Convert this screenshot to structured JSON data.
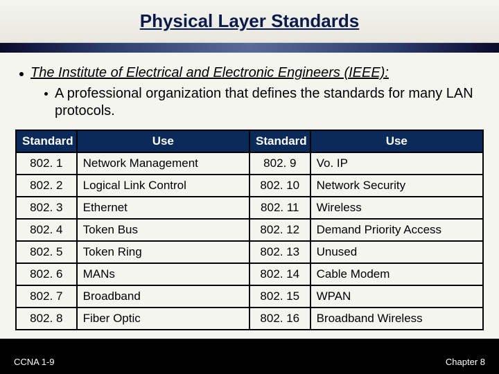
{
  "title": "Physical Layer Standards",
  "bullet_main": "The Institute of Electrical and Electronic Engineers (IEEE):",
  "bullet_sub": "A professional organization that defines the standards for many LAN protocols.",
  "table": {
    "header_std": "Standard",
    "header_use": "Use",
    "rows": [
      {
        "s1": "802. 1",
        "u1": "Network Management",
        "s2": "802. 9",
        "u2": "Vo. IP"
      },
      {
        "s1": "802. 2",
        "u1": "Logical Link Control",
        "s2": "802. 10",
        "u2": "Network Security"
      },
      {
        "s1": "802. 3",
        "u1": "Ethernet",
        "s2": "802. 11",
        "u2": "Wireless"
      },
      {
        "s1": "802. 4",
        "u1": "Token Bus",
        "s2": "802. 12",
        "u2": "Demand Priority Access"
      },
      {
        "s1": "802. 5",
        "u1": "Token Ring",
        "s2": "802. 13",
        "u2": "Unused"
      },
      {
        "s1": "802. 6",
        "u1": "MANs",
        "s2": "802. 14",
        "u2": "Cable Modem"
      },
      {
        "s1": "802. 7",
        "u1": "Broadband",
        "s2": "802. 15",
        "u2": "WPAN"
      },
      {
        "s1": "802. 8",
        "u1": "Fiber Optic",
        "s2": "802. 16",
        "u2": "Broadband Wireless"
      }
    ]
  },
  "footer_left": "CCNA 1-9",
  "footer_right": "Chapter 8",
  "colors": {
    "slide_bg": "#000000",
    "content_bg": "#f5f5f0",
    "header_bg": "#0a2a5a",
    "header_fg": "#ffffff",
    "title_color": "#0a1a4a",
    "border": "#000000"
  }
}
